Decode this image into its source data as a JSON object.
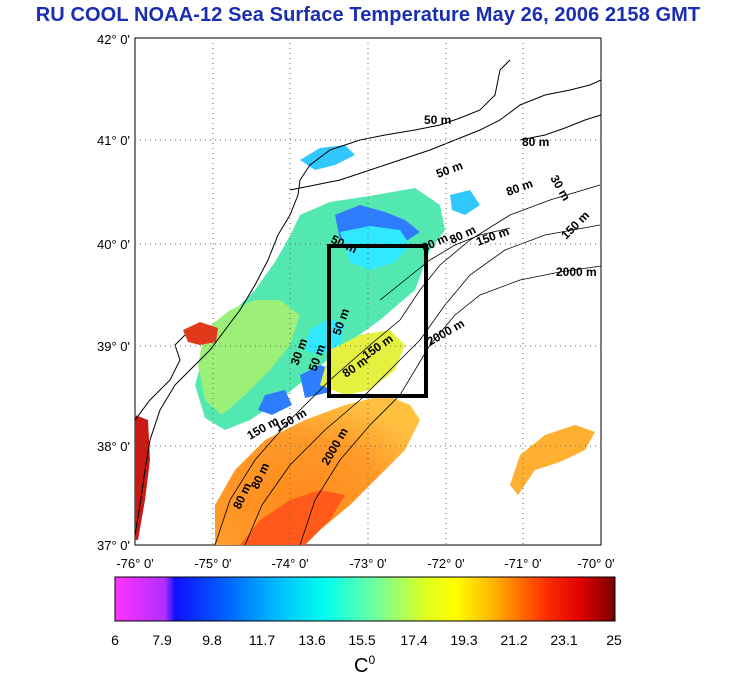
{
  "title": "RU COOL  NOAA-12 Sea Surface Temperature May 26, 2006 2158 GMT",
  "map": {
    "lat_ticks": [
      "42° 0'",
      "41° 0'",
      "40° 0'",
      "39° 0'",
      "38° 0'",
      "37° 0'"
    ],
    "lon_ticks": [
      "-76° 0'",
      "-75° 0'",
      "-74° 0'",
      "-73° 0'",
      "-72° 0'",
      "-71° 0'",
      "-70° 0'"
    ],
    "isobath_labels": [
      "50 m",
      "50 m",
      "80 m",
      "80 m",
      "80 m",
      "80 m",
      "80 m",
      "150 m",
      "150 m",
      "150 m",
      "150 m",
      "2000 m",
      "2000 m",
      "2000 m",
      "30 m",
      "50 m",
      "30 m",
      "50 m",
      "50 m",
      "80 m",
      "80 m",
      "150 m"
    ],
    "colors": {
      "land": "#ffffff",
      "box": "#000000",
      "grid": "#666666"
    }
  },
  "colorbar": {
    "tick_labels": [
      "6",
      "7.9",
      "9.8",
      "11.7",
      "13.6",
      "15.5",
      "17.4",
      "19.3",
      "21.2",
      "23.1",
      "25"
    ],
    "unit": "C",
    "unit_sup": "0"
  }
}
